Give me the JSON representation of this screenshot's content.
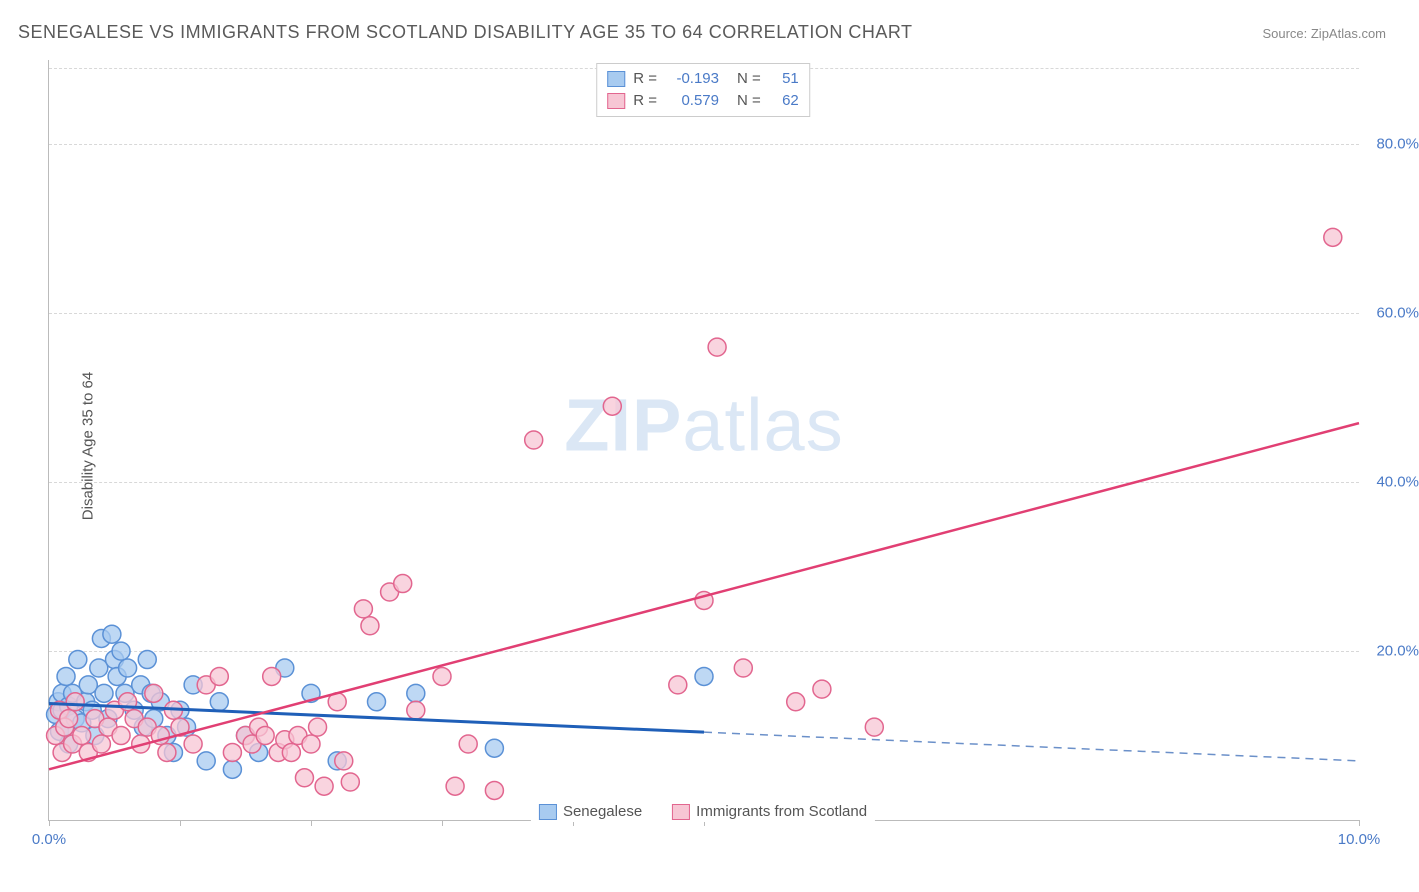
{
  "title": "SENEGALESE VS IMMIGRANTS FROM SCOTLAND DISABILITY AGE 35 TO 64 CORRELATION CHART",
  "source_label": "Source: ZipAtlas.com",
  "ylabel": "Disability Age 35 to 64",
  "watermark": "ZIPatlas",
  "chart": {
    "type": "scatter",
    "xlim": [
      0,
      10
    ],
    "ylim": [
      0,
      90
    ],
    "xtick_positions": [
      0,
      1,
      2,
      3,
      4,
      5,
      10
    ],
    "xtick_labels": {
      "0": "0.0%",
      "10": "10.0%"
    },
    "ytick_positions": [
      20,
      40,
      60,
      80
    ],
    "ytick_labels": {
      "20": "20.0%",
      "40": "40.0%",
      "60": "60.0%",
      "80": "80.0%"
    },
    "background_color": "#ffffff",
    "grid_color": "#d8d8d8",
    "axis_color": "#bbbbbb",
    "tick_label_color": "#4a7ac7",
    "marker_radius": 9,
    "marker_stroke_width": 1.5,
    "series": [
      {
        "key": "senegalese",
        "label": "Senegalese",
        "fill": "#a8cbf0",
        "stroke": "#5b91d6",
        "R": "-0.193",
        "N": "51",
        "trend": {
          "y_at_x0": 13.8,
          "y_at_xmax": 7.0,
          "solid_until_x": 5.0,
          "solid_color": "#1f5fb8",
          "solid_width": 3,
          "dashed_color": "#6b90c9",
          "dashed_width": 1.5,
          "dash": "8 6"
        },
        "points": [
          [
            0.05,
            12.5
          ],
          [
            0.07,
            14.0
          ],
          [
            0.08,
            10.5
          ],
          [
            0.1,
            13.0
          ],
          [
            0.1,
            15.0
          ],
          [
            0.12,
            11.0
          ],
          [
            0.13,
            17.0
          ],
          [
            0.15,
            13.5
          ],
          [
            0.15,
            9.0
          ],
          [
            0.18,
            15.0
          ],
          [
            0.2,
            12.0
          ],
          [
            0.22,
            19.0
          ],
          [
            0.25,
            11.5
          ],
          [
            0.28,
            14.0
          ],
          [
            0.3,
            16.0
          ],
          [
            0.33,
            13.0
          ],
          [
            0.35,
            10.0
          ],
          [
            0.38,
            18.0
          ],
          [
            0.4,
            21.5
          ],
          [
            0.42,
            15.0
          ],
          [
            0.45,
            12.0
          ],
          [
            0.48,
            22.0
          ],
          [
            0.5,
            19.0
          ],
          [
            0.52,
            17.0
          ],
          [
            0.55,
            20.0
          ],
          [
            0.58,
            15.0
          ],
          [
            0.6,
            18.0
          ],
          [
            0.65,
            13.0
          ],
          [
            0.7,
            16.0
          ],
          [
            0.72,
            11.0
          ],
          [
            0.75,
            19.0
          ],
          [
            0.78,
            15.0
          ],
          [
            0.8,
            12.0
          ],
          [
            0.85,
            14.0
          ],
          [
            0.9,
            10.0
          ],
          [
            0.95,
            8.0
          ],
          [
            1.0,
            13.0
          ],
          [
            1.05,
            11.0
          ],
          [
            1.1,
            16.0
          ],
          [
            1.2,
            7.0
          ],
          [
            1.3,
            14.0
          ],
          [
            1.4,
            6.0
          ],
          [
            1.5,
            10.0
          ],
          [
            1.6,
            8.0
          ],
          [
            1.8,
            18.0
          ],
          [
            2.0,
            15.0
          ],
          [
            2.2,
            7.0
          ],
          [
            2.5,
            14.0
          ],
          [
            2.8,
            15.0
          ],
          [
            3.4,
            8.5
          ],
          [
            5.0,
            17.0
          ]
        ]
      },
      {
        "key": "scotland",
        "label": "Immigrants from Scotland",
        "fill": "#f7c6d4",
        "stroke": "#e2668f",
        "R": "0.579",
        "N": "62",
        "trend": {
          "y_at_x0": 6.0,
          "y_at_xmax": 47.0,
          "solid_until_x": 10.0,
          "solid_color": "#e13f73",
          "solid_width": 2.5,
          "dashed_color": "#e13f73",
          "dashed_width": 0,
          "dash": ""
        },
        "points": [
          [
            0.05,
            10.0
          ],
          [
            0.08,
            13.0
          ],
          [
            0.1,
            8.0
          ],
          [
            0.12,
            11.0
          ],
          [
            0.15,
            12.0
          ],
          [
            0.18,
            9.0
          ],
          [
            0.2,
            14.0
          ],
          [
            0.25,
            10.0
          ],
          [
            0.3,
            8.0
          ],
          [
            0.35,
            12.0
          ],
          [
            0.4,
            9.0
          ],
          [
            0.45,
            11.0
          ],
          [
            0.5,
            13.0
          ],
          [
            0.55,
            10.0
          ],
          [
            0.6,
            14.0
          ],
          [
            0.65,
            12.0
          ],
          [
            0.7,
            9.0
          ],
          [
            0.75,
            11.0
          ],
          [
            0.8,
            15.0
          ],
          [
            0.85,
            10.0
          ],
          [
            0.9,
            8.0
          ],
          [
            0.95,
            13.0
          ],
          [
            1.0,
            11.0
          ],
          [
            1.1,
            9.0
          ],
          [
            1.2,
            16.0
          ],
          [
            1.3,
            17.0
          ],
          [
            1.4,
            8.0
          ],
          [
            1.5,
            10.0
          ],
          [
            1.55,
            9.0
          ],
          [
            1.6,
            11.0
          ],
          [
            1.65,
            10.0
          ],
          [
            1.7,
            17.0
          ],
          [
            1.75,
            8.0
          ],
          [
            1.8,
            9.5
          ],
          [
            1.85,
            8.0
          ],
          [
            1.9,
            10.0
          ],
          [
            1.95,
            5.0
          ],
          [
            2.0,
            9.0
          ],
          [
            2.05,
            11.0
          ],
          [
            2.1,
            4.0
          ],
          [
            2.2,
            14.0
          ],
          [
            2.25,
            7.0
          ],
          [
            2.3,
            4.5
          ],
          [
            2.4,
            25.0
          ],
          [
            2.45,
            23.0
          ],
          [
            2.6,
            27.0
          ],
          [
            2.7,
            28.0
          ],
          [
            2.8,
            13.0
          ],
          [
            3.0,
            17.0
          ],
          [
            3.1,
            4.0
          ],
          [
            3.2,
            9.0
          ],
          [
            3.4,
            3.5
          ],
          [
            3.7,
            45.0
          ],
          [
            4.3,
            49.0
          ],
          [
            4.8,
            16.0
          ],
          [
            5.0,
            26.0
          ],
          [
            5.1,
            56.0
          ],
          [
            5.3,
            18.0
          ],
          [
            5.7,
            14.0
          ],
          [
            5.9,
            15.5
          ],
          [
            6.3,
            11.0
          ],
          [
            9.8,
            69.0
          ]
        ]
      }
    ]
  },
  "legend": {
    "series1_label": "Senegalese",
    "series2_label": "Immigrants from Scotland"
  }
}
